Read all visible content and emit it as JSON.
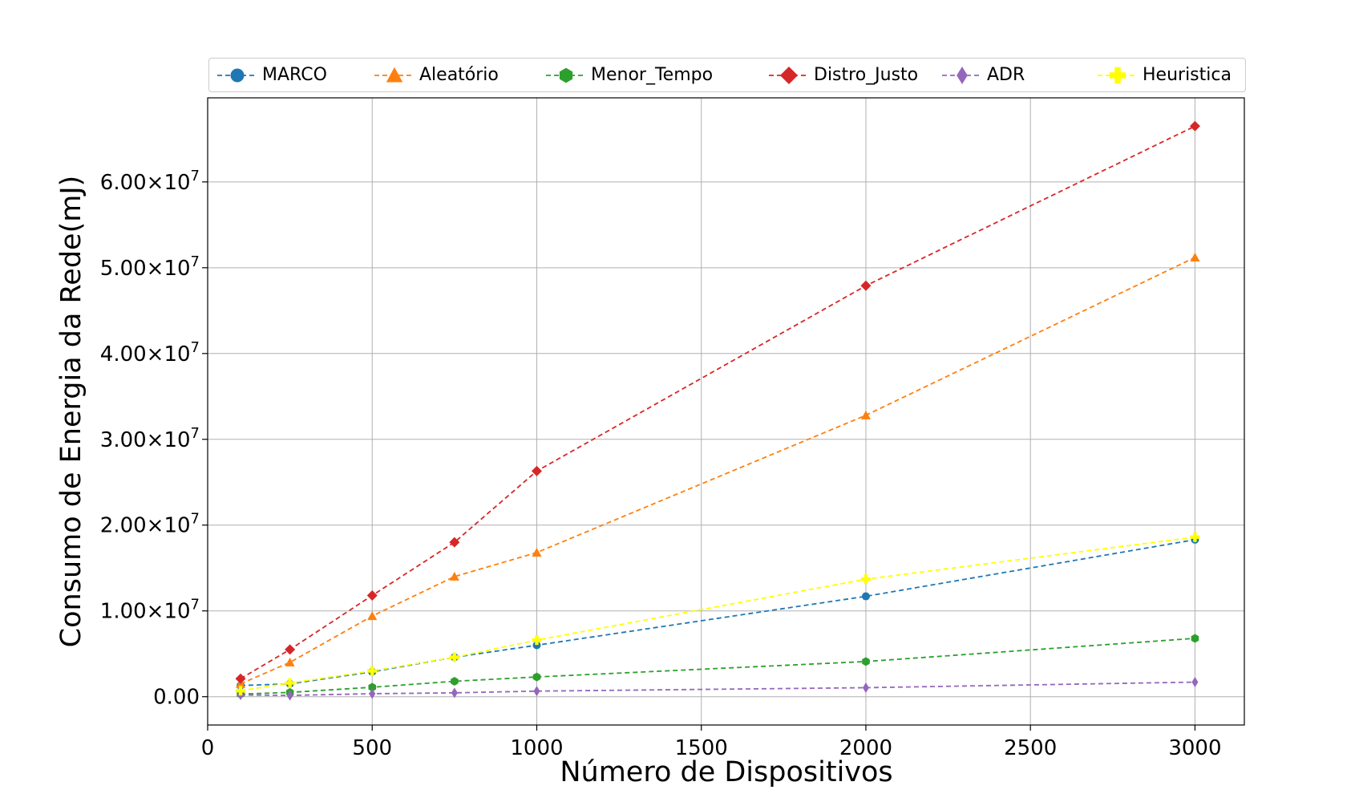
{
  "chart_data": {
    "type": "line",
    "title": "",
    "xlabel": "Número de Dispositivos",
    "ylabel": "Consumo de Energia da Rede(mJ)",
    "x": [
      100,
      250,
      500,
      750,
      1000,
      2000,
      3000
    ],
    "xlim": [
      0,
      3150
    ],
    "ylim": [
      -3300000,
      69800000
    ],
    "x_ticks": [
      0,
      500,
      1000,
      1500,
      2000,
      2500,
      3000
    ],
    "x_tick_labels": [
      "0",
      "500",
      "1000",
      "1500",
      "2000",
      "2500",
      "3000"
    ],
    "y_ticks": [
      0,
      10000000,
      20000000,
      30000000,
      40000000,
      50000000,
      60000000
    ],
    "y_tick_labels": [
      {
        "mantissa": "0.00",
        "exponent": ""
      },
      {
        "mantissa": "1.00×10",
        "exponent": "7"
      },
      {
        "mantissa": "2.00×10",
        "exponent": "7"
      },
      {
        "mantissa": "3.00×10",
        "exponent": "7"
      },
      {
        "mantissa": "4.00×10",
        "exponent": "7"
      },
      {
        "mantissa": "5.00×10",
        "exponent": "7"
      },
      {
        "mantissa": "6.00×10",
        "exponent": "7"
      }
    ],
    "grid": true,
    "legend_position": "top",
    "series": [
      {
        "name": "MARCO",
        "color": "#1f77b4",
        "marker": "circle",
        "values": [
          1300000,
          1500000,
          2900000,
          4600000,
          6000000,
          11700000,
          18300000
        ]
      },
      {
        "name": "Aleatório",
        "color": "#ff7f0e",
        "marker": "triangle",
        "values": [
          1500000,
          4000000,
          9400000,
          14000000,
          16800000,
          32800000,
          51200000
        ]
      },
      {
        "name": "Menor_Tempo",
        "color": "#2ca02c",
        "marker": "hexagon",
        "values": [
          300000,
          500000,
          1100000,
          1800000,
          2300000,
          4100000,
          6800000
        ]
      },
      {
        "name": "Distro_Justo",
        "color": "#d62728",
        "marker": "diamond",
        "values": [
          2100000,
          5500000,
          11800000,
          18000000,
          26300000,
          47900000,
          66500000
        ]
      },
      {
        "name": "ADR",
        "color": "#9467bd",
        "marker": "thin_diamond",
        "values": [
          200000,
          150000,
          350000,
          450000,
          650000,
          1050000,
          1700000
        ]
      },
      {
        "name": "Heuristica",
        "color": "#ffff00",
        "marker": "plus",
        "values": [
          700000,
          1600000,
          3000000,
          4600000,
          6600000,
          13700000,
          18600000
        ]
      }
    ]
  }
}
